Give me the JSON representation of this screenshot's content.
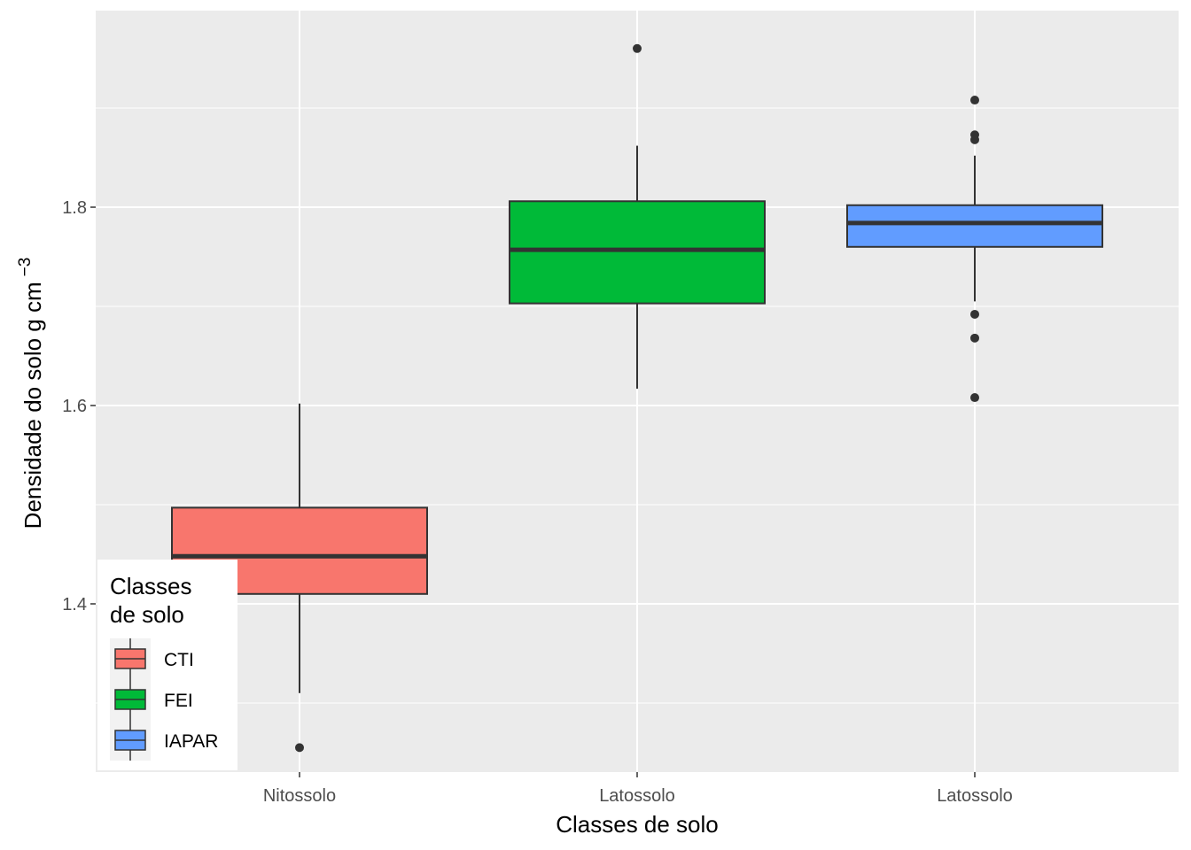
{
  "chart_data": {
    "type": "boxplot",
    "xlabel": "Classes de solo",
    "ylabel": "Densidade do solo g cm",
    "ylabel_sup": "−3",
    "categories": [
      "Nitossolo",
      "Latossolo",
      "Latossolo"
    ],
    "ylim": [
      1.2,
      1.98
    ],
    "yticks": [
      1.4,
      1.6,
      1.8
    ],
    "ytick_labels": [
      "1.4",
      "1.6",
      "1.8"
    ],
    "grid": true,
    "legend": {
      "title_lines": [
        "Classes",
        "de solo"
      ],
      "position": "bottom-left",
      "items": [
        {
          "label": "CTI",
          "color": "#F8766D"
        },
        {
          "label": "FEI",
          "color": "#00BA38"
        },
        {
          "label": "IAPAR",
          "color": "#619CFF"
        }
      ]
    },
    "boxes": [
      {
        "group": "CTI",
        "category_index": 0,
        "color": "#F8766D",
        "whisker_low": 1.31,
        "q1": 1.41,
        "median": 1.448,
        "q3": 1.497,
        "whisker_high": 1.602,
        "outliers": [
          1.255
        ]
      },
      {
        "group": "FEI",
        "category_index": 1,
        "color": "#00BA38",
        "whisker_low": 1.617,
        "q1": 1.703,
        "median": 1.757,
        "q3": 1.806,
        "whisker_high": 1.862,
        "outliers": [
          1.96
        ]
      },
      {
        "group": "IAPAR",
        "category_index": 2,
        "color": "#619CFF",
        "whisker_low": 1.705,
        "q1": 1.76,
        "median": 1.784,
        "q3": 1.802,
        "whisker_high": 1.852,
        "outliers": [
          1.908,
          1.873,
          1.868,
          1.692,
          1.668,
          1.608
        ]
      }
    ]
  }
}
